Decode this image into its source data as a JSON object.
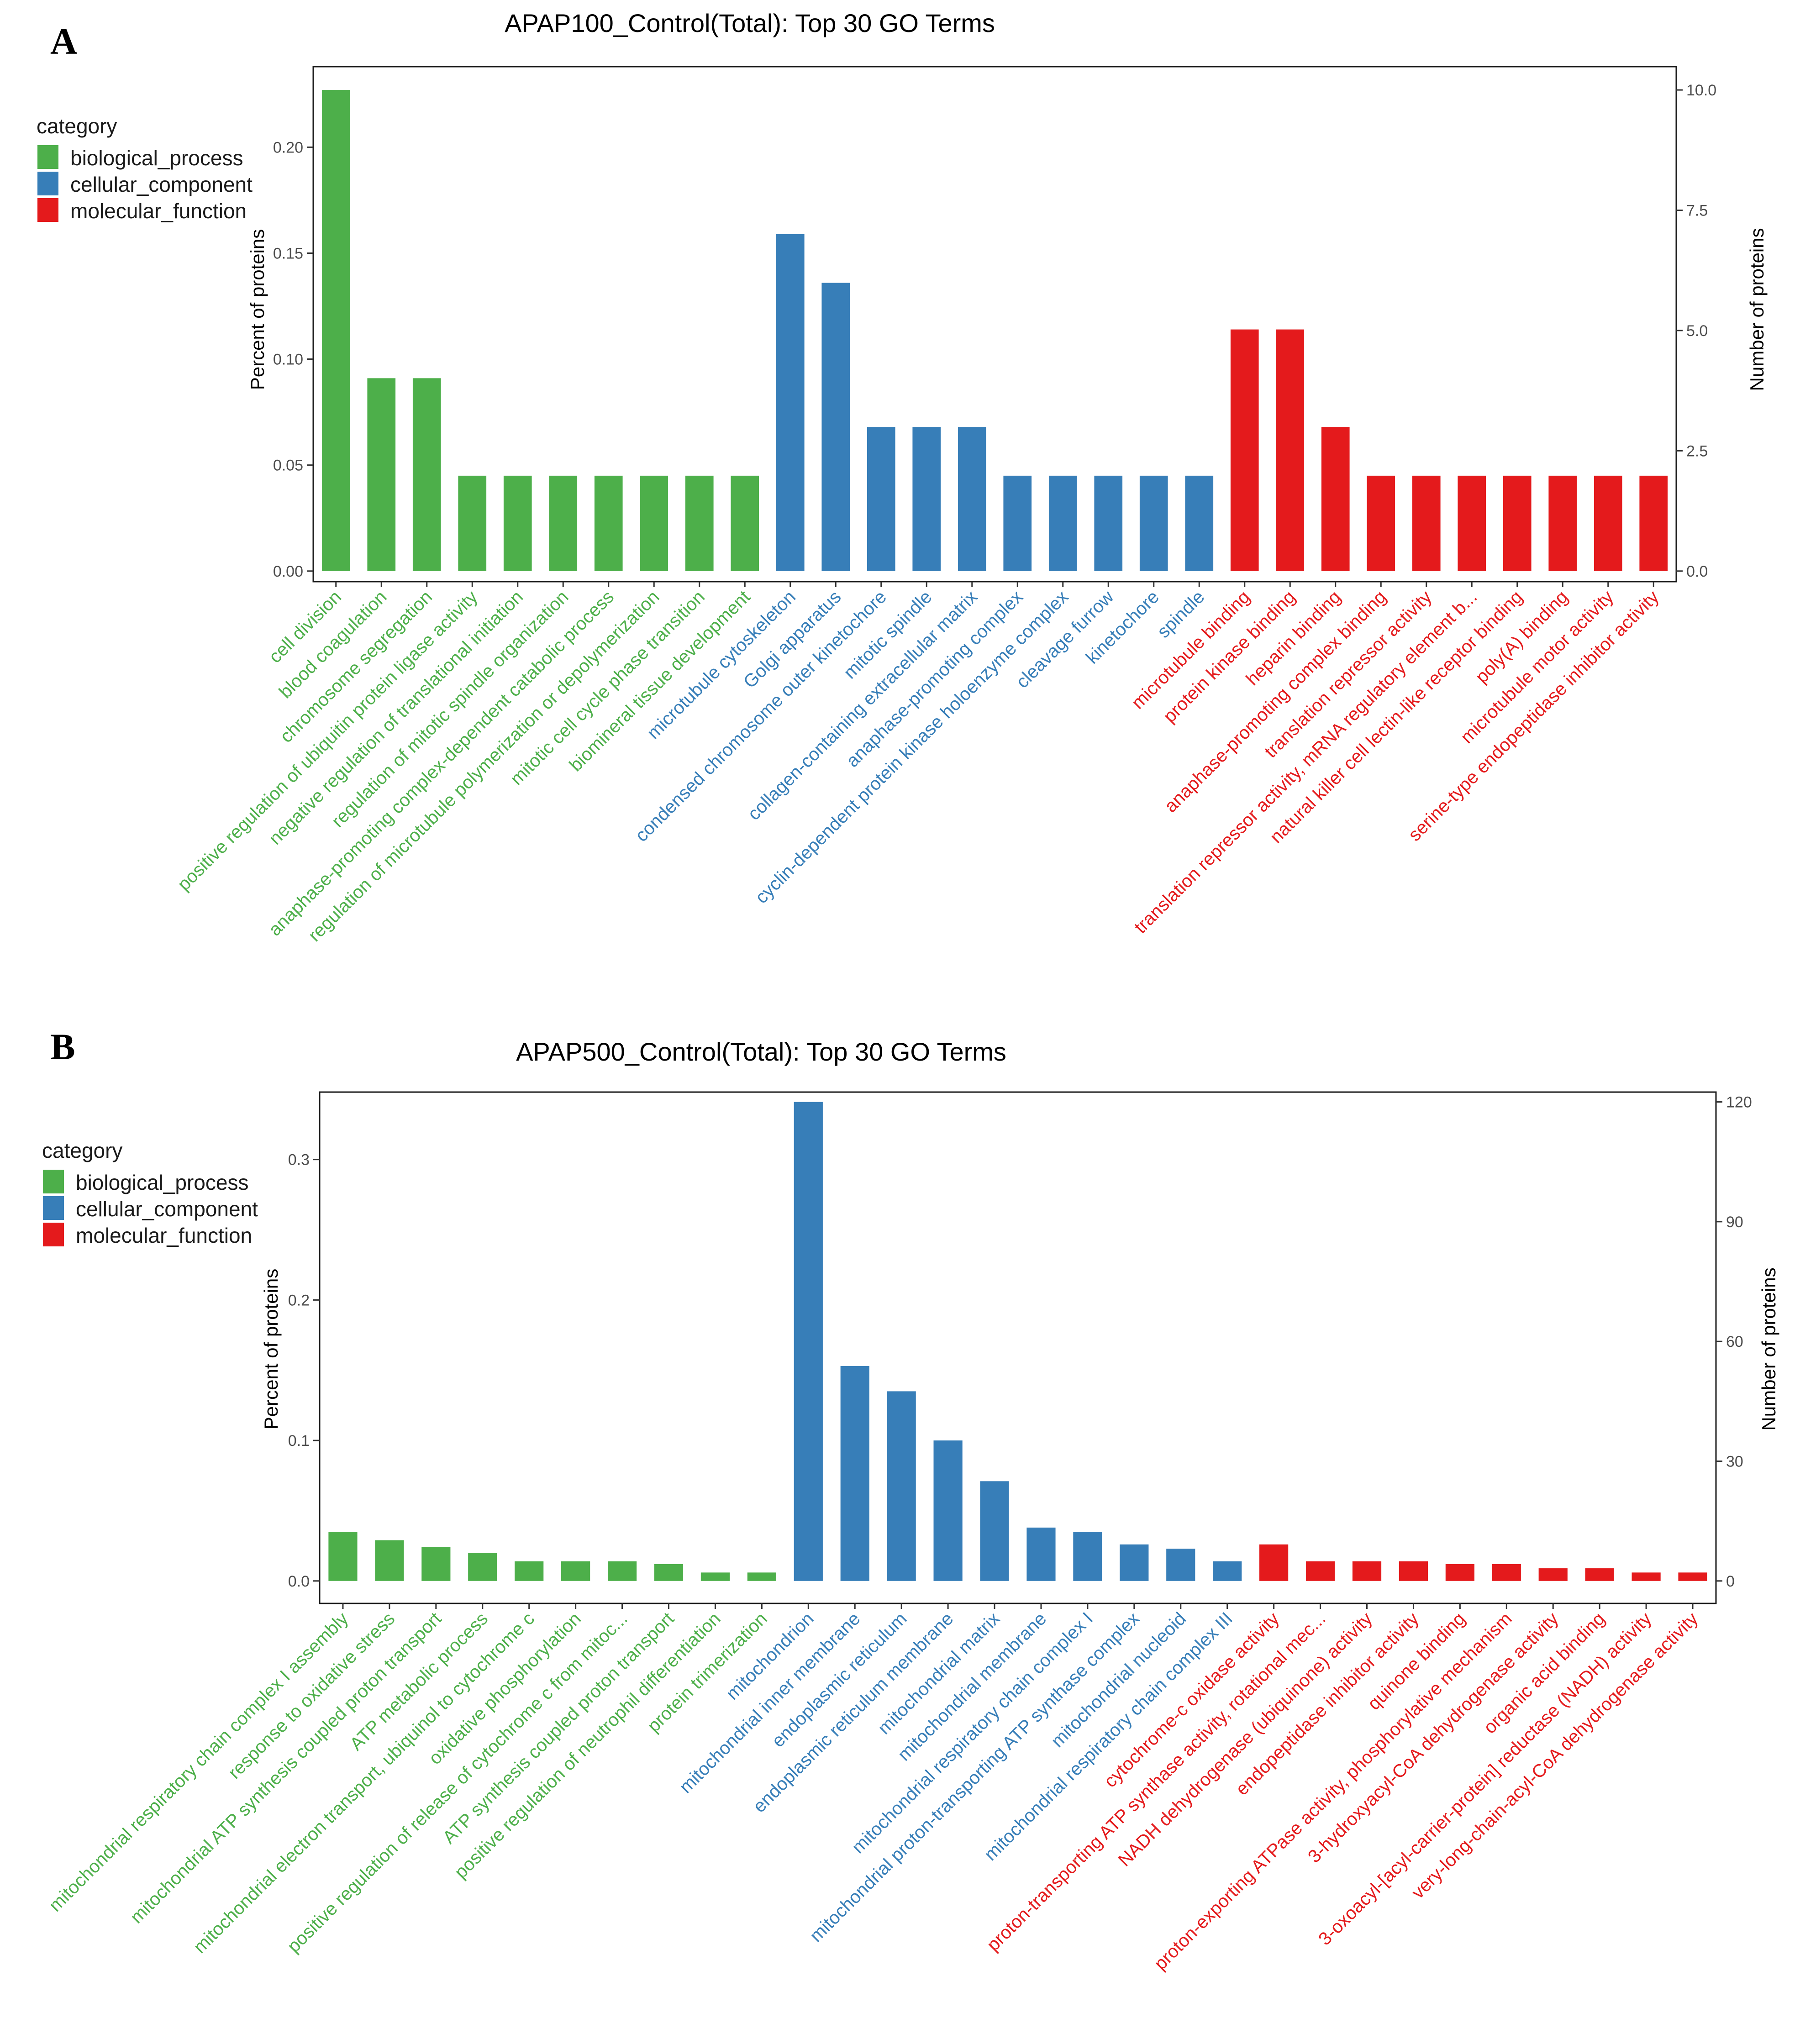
{
  "colors": {
    "biological_process": "#4daf4a",
    "cellular_component": "#377eb8",
    "molecular_function": "#e41a1c"
  },
  "legend": {
    "title": "category",
    "items": [
      {
        "key": "biological_process",
        "label": "biological_process"
      },
      {
        "key": "cellular_component",
        "label": "cellular_component"
      },
      {
        "key": "molecular_function",
        "label": "molecular_function"
      }
    ]
  },
  "chart_data": [
    {
      "panel": "A",
      "type": "bar",
      "title": "APAP100_Control(Total): Top 30 GO Terms",
      "ylabel": "Percent of proteins",
      "y2label": "Number of proteins",
      "ylim": [
        -0.005,
        0.238
      ],
      "yticks": [
        "0.00",
        "0.05",
        "0.10",
        "0.15",
        "0.20"
      ],
      "y2ticks": [
        "0.0",
        "2.5",
        "5.0",
        "7.5",
        "10.0"
      ],
      "y2max": 10.0,
      "categories": [
        "cell division",
        "blood coagulation",
        "chromosome segregation",
        "positive regulation of ubiquitin protein ligase activity",
        "negative regulation of translational initiation",
        "regulation of mitotic spindle organization",
        "anaphase-promoting complex-dependent catabolic process",
        "regulation of microtubule polymerization or depolymerization",
        "mitotic cell cycle phase transition",
        "biomineral tissue development",
        "microtubule cytoskeleton",
        "Golgi apparatus",
        "condensed chromosome outer kinetochore",
        "mitotic spindle",
        "collagen-containing extracellular matrix",
        "anaphase-promoting complex",
        "cyclin-dependent protein kinase holoenzyme complex",
        "cleavage furrow",
        "kinetochore",
        "spindle",
        "microtubule binding",
        "protein kinase binding",
        "heparin binding",
        "anaphase-promoting complex binding",
        "translation repressor activity",
        "translation repressor activity, mRNA regulatory element b...",
        "natural killer cell lectin-like receptor binding",
        "poly(A) binding",
        "microtubule motor activity",
        "serine-type endopeptidase inhibitor activity"
      ],
      "values": [
        0.227,
        0.091,
        0.091,
        0.045,
        0.045,
        0.045,
        0.045,
        0.045,
        0.045,
        0.045,
        0.159,
        0.136,
        0.068,
        0.068,
        0.068,
        0.045,
        0.045,
        0.045,
        0.045,
        0.045,
        0.114,
        0.114,
        0.068,
        0.045,
        0.045,
        0.045,
        0.045,
        0.045,
        0.045,
        0.045
      ],
      "groups": [
        "biological_process",
        "biological_process",
        "biological_process",
        "biological_process",
        "biological_process",
        "biological_process",
        "biological_process",
        "biological_process",
        "biological_process",
        "biological_process",
        "cellular_component",
        "cellular_component",
        "cellular_component",
        "cellular_component",
        "cellular_component",
        "cellular_component",
        "cellular_component",
        "cellular_component",
        "cellular_component",
        "cellular_component",
        "molecular_function",
        "molecular_function",
        "molecular_function",
        "molecular_function",
        "molecular_function",
        "molecular_function",
        "molecular_function",
        "molecular_function",
        "molecular_function",
        "molecular_function"
      ]
    },
    {
      "panel": "B",
      "type": "bar",
      "title": "APAP500_Control(Total): Top 30 GO Terms",
      "ylabel": "Percent of proteins",
      "y2label": "Number of proteins",
      "ylim": [
        -0.016,
        0.348
      ],
      "yticks": [
        "0.0",
        "0.1",
        "0.2",
        "0.3"
      ],
      "y2ticks": [
        "0",
        "30",
        "60",
        "90",
        "120"
      ],
      "y2max": 120,
      "categories": [
        "mitochondrial respiratory chain complex I assembly",
        "response to oxidative stress",
        "mitochondrial ATP synthesis coupled proton transport",
        "ATP metabolic process",
        "mitochondrial electron transport, ubiquinol to cytochrome c",
        "oxidative phosphorylation",
        "positive regulation of release of cytochrome c from mitoc...",
        "ATP synthesis coupled proton transport",
        "positive regulation of neutrophil differentiation",
        "protein trimerization",
        "mitochondrion",
        "mitochondrial inner membrane",
        "endoplasmic reticulum",
        "endoplasmic reticulum membrane",
        "mitochondrial matrix",
        "mitochondrial membrane",
        "mitochondrial respiratory chain complex I",
        "mitochondrial proton-transporting ATP synthase complex",
        "mitochondrial nucleoid",
        "mitochondrial respiratory chain complex III",
        "cytochrome-c oxidase activity",
        "proton-transporting ATP synthase activity, rotational mec...",
        "NADH dehydrogenase (ubiquinone) activity",
        "endopeptidase inhibitor activity",
        "quinone binding",
        "proton-exporting ATPase activity, phosphorylative mechanism",
        "3-hydroxyacyl-CoA dehydrogenase activity",
        "organic acid binding",
        "3-oxoacyl-[acyl-carrier-protein] reductase (NADH) activity",
        "very-long-chain-acyl-CoA dehydrogenase activity"
      ],
      "values": [
        0.035,
        0.029,
        0.024,
        0.02,
        0.014,
        0.014,
        0.014,
        0.012,
        0.006,
        0.006,
        0.341,
        0.153,
        0.135,
        0.1,
        0.071,
        0.038,
        0.035,
        0.026,
        0.023,
        0.014,
        0.026,
        0.014,
        0.014,
        0.014,
        0.012,
        0.012,
        0.009,
        0.009,
        0.006,
        0.006
      ],
      "groups": [
        "biological_process",
        "biological_process",
        "biological_process",
        "biological_process",
        "biological_process",
        "biological_process",
        "biological_process",
        "biological_process",
        "biological_process",
        "biological_process",
        "cellular_component",
        "cellular_component",
        "cellular_component",
        "cellular_component",
        "cellular_component",
        "cellular_component",
        "cellular_component",
        "cellular_component",
        "cellular_component",
        "cellular_component",
        "molecular_function",
        "molecular_function",
        "molecular_function",
        "molecular_function",
        "molecular_function",
        "molecular_function",
        "molecular_function",
        "molecular_function",
        "molecular_function",
        "molecular_function"
      ]
    }
  ]
}
